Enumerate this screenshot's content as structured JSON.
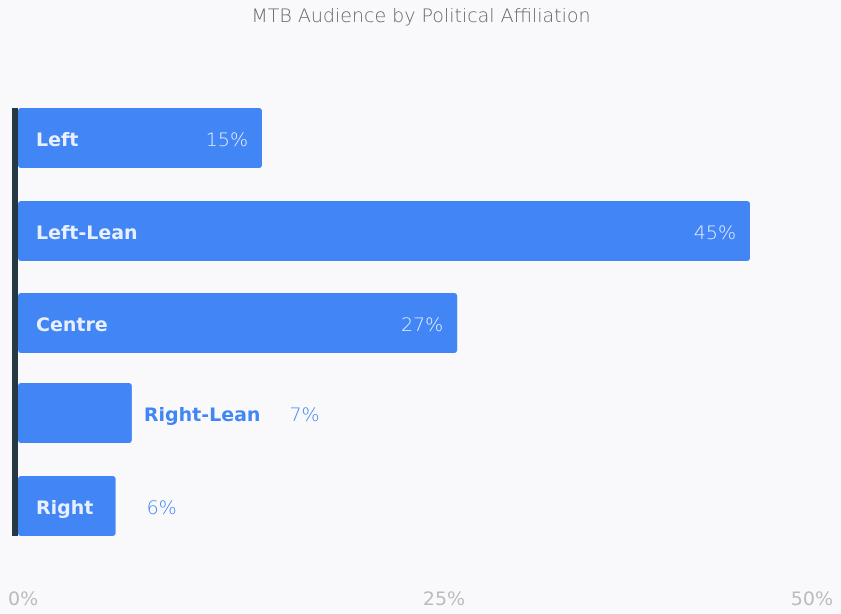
{
  "chart_data": {
    "type": "bar",
    "orientation": "horizontal",
    "title": "MTB Audience by Political Affiliation",
    "categories": [
      "Left",
      "Left-Lean",
      "Centre",
      "Right-Lean",
      "Right"
    ],
    "values": [
      15,
      45,
      27,
      7,
      6
    ],
    "value_labels": [
      "15%",
      "45%",
      "27%",
      "7%",
      "6%"
    ],
    "xlim": [
      0,
      50
    ],
    "xticks": [
      "0%",
      "25%",
      "50%"
    ],
    "xlabel": "",
    "ylabel": "",
    "grid": false,
    "colors": {
      "bar": "#4285f4",
      "axis": "#263844",
      "label_inside": "#e8efff",
      "label_outside": "#4285f4",
      "background": "#f9f9fc"
    }
  }
}
